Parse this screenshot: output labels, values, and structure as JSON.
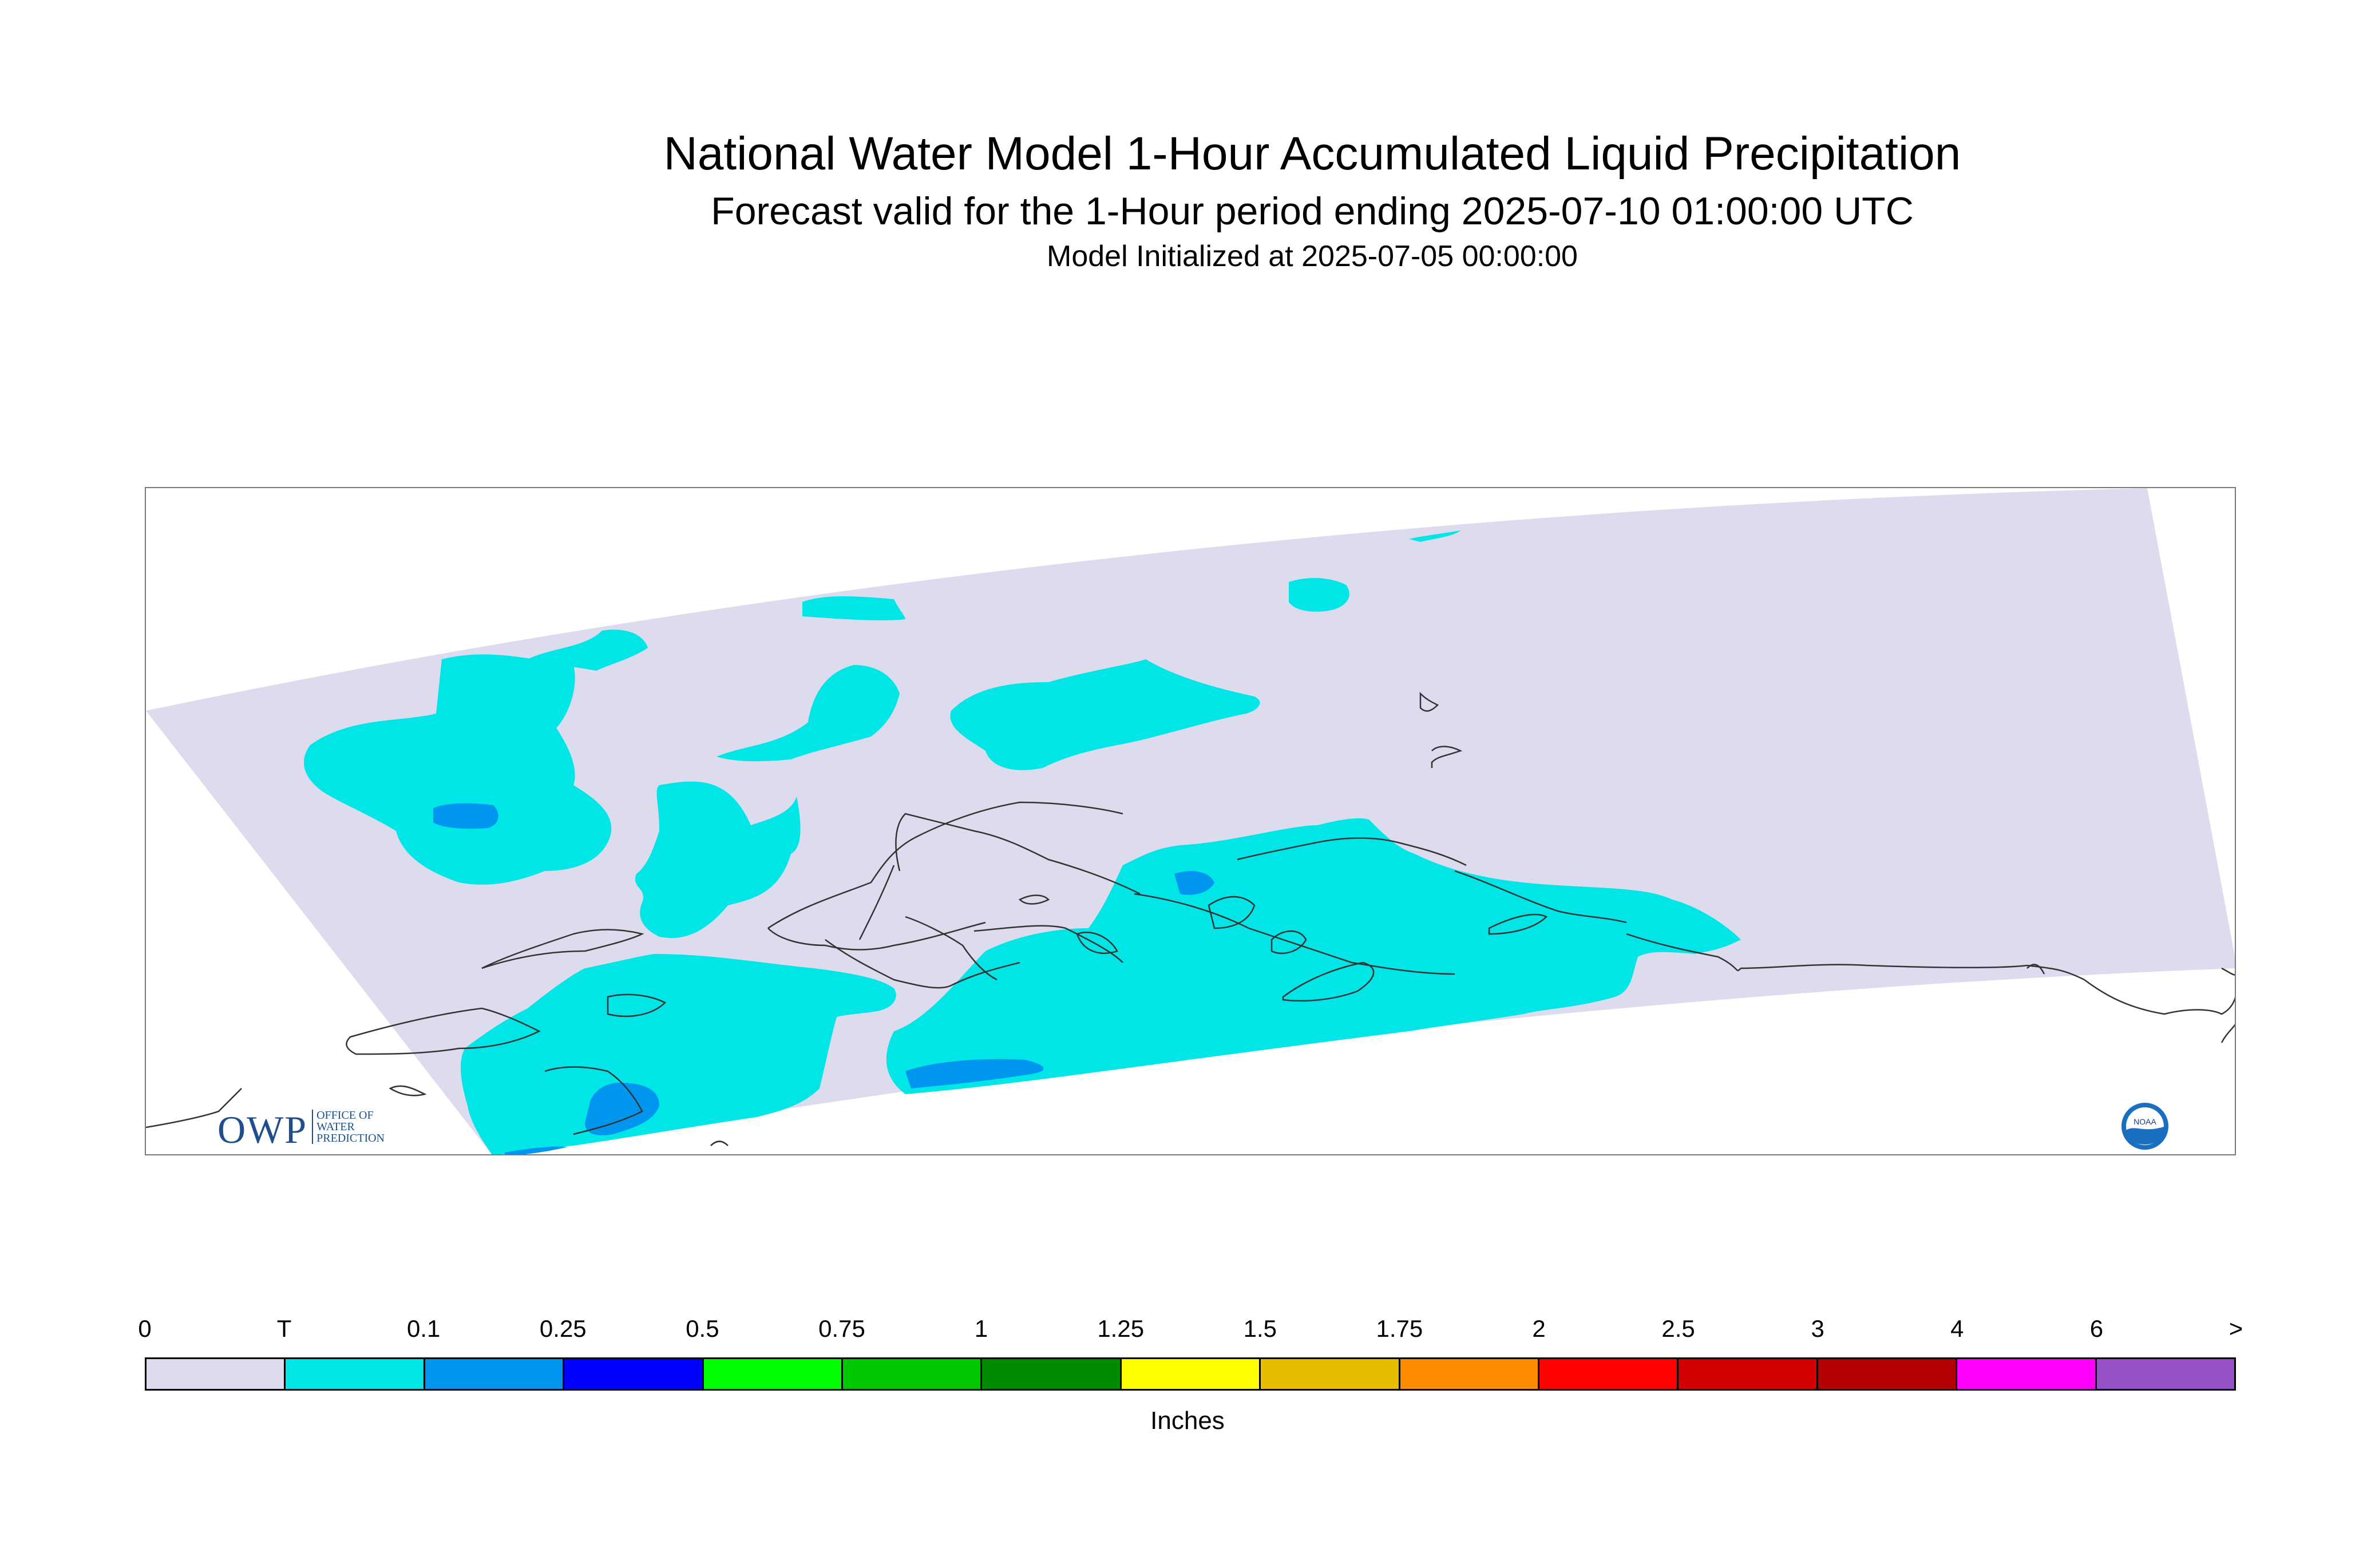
{
  "header": {
    "title": "National Water Model 1-Hour Accumulated Liquid Precipitation",
    "subtitle": "Forecast valid for the 1-Hour period ending 2025-07-10 01:00:00 UTC",
    "init": "Model Initialized at 2025-07-05 00:00:00"
  },
  "legend": {
    "units": "Inches",
    "ticks": [
      "0",
      "T",
      "0.1",
      "0.25",
      "0.5",
      "0.75",
      "1",
      "1.25",
      "1.5",
      "1.75",
      "2",
      "2.5",
      "3",
      "4",
      "6",
      ">"
    ],
    "colors": [
      "#dcdcee",
      "#00e6e6",
      "#0096f0",
      "#0000ff",
      "#00ff00",
      "#00c800",
      "#008c00",
      "#ffff00",
      "#e6be00",
      "#ff8c00",
      "#ff0000",
      "#d20000",
      "#b40000",
      "#ff00ff",
      "#9650c8"
    ]
  },
  "map": {
    "region": "Alaska",
    "domain_color": "#dcdcee",
    "trace_color": "#00e6e6",
    "light_color": "#0096f0",
    "coastline_color": "#333333"
  },
  "logos": {
    "owp_mark": "OWP",
    "owp_text": [
      "OFFICE OF",
      "WATER",
      "PREDICTION"
    ],
    "noaa_text": "NOAA"
  }
}
